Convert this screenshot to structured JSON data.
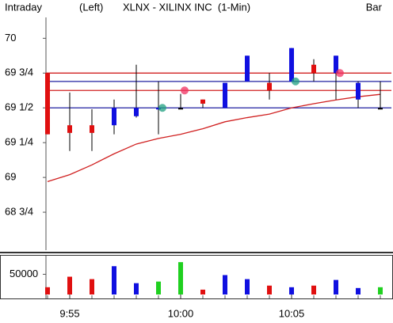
{
  "chart_data": [
    {
      "type": "candlestick",
      "header_left": "Intraday",
      "axis_side": "(Left)",
      "title": "XLNX - XILINX INC  (1-Min)",
      "chart_style": "Bar",
      "categories": [
        null,
        "9:55",
        null,
        null,
        null,
        null,
        "10:00",
        null,
        null,
        null,
        null,
        "10:05",
        null,
        null,
        null,
        null
      ],
      "open": [
        69.75,
        69.375,
        69.375,
        69.375,
        69.44,
        69.49,
        69.5,
        69.56,
        69.5,
        69.69,
        69.68,
        69.69,
        69.81,
        69.75,
        69.56,
        69.5
      ],
      "high": [
        69.75,
        69.61,
        69.49,
        69.56,
        69.81,
        69.69,
        69.6,
        69.56,
        69.68,
        69.875,
        69.75,
        69.93,
        69.85,
        69.875,
        69.69,
        69.69
      ],
      "low": [
        69.31,
        69.19,
        69.19,
        69.31,
        69.43,
        69.31,
        69.5,
        69.5,
        69.5,
        69.69,
        69.56,
        69.69,
        69.69,
        69.56,
        69.5,
        69.5
      ],
      "close": [
        69.31,
        69.32,
        69.32,
        69.5,
        69.5,
        69.5,
        69.5,
        69.53,
        69.68,
        69.875,
        69.625,
        69.93,
        69.75,
        69.875,
        69.68,
        69.5
      ],
      "up_color": "#1010e0",
      "down_color": "#e01010",
      "flat_color": "#000000",
      "moving_average": {
        "color": "#d02020",
        "values": [
          68.97,
          69.02,
          69.09,
          69.17,
          69.24,
          69.28,
          69.31,
          69.35,
          69.4,
          69.43,
          69.455,
          69.5,
          69.53,
          69.557,
          69.58,
          69.597
        ]
      },
      "hlines": [
        {
          "value": 69.75,
          "color": "#d02020"
        },
        {
          "value": 69.69,
          "color": "#2020a0"
        },
        {
          "value": 69.625,
          "color": "#d02020"
        },
        {
          "value": 69.5,
          "color": "#2020a0"
        }
      ],
      "signals": [
        {
          "index": 5,
          "value": 69.5,
          "color": "#20a080"
        },
        {
          "index": 6,
          "value": 69.625,
          "color": "#f03060"
        },
        {
          "index": 11,
          "value": 69.69,
          "color": "#20a080"
        },
        {
          "index": 13,
          "value": 69.75,
          "color": "#f03060"
        }
      ],
      "ylim": [
        68.5,
        70.15
      ],
      "yticks": [
        70,
        {
          "value": 69.75,
          "label": "69 3/4"
        },
        {
          "value": 69.5,
          "label": "69 1/2"
        },
        {
          "value": 69.25,
          "label": "69 1/4"
        },
        69,
        {
          "value": 68.75,
          "label": "68 3/4"
        }
      ]
    },
    {
      "type": "bar",
      "values": [
        18000,
        44000,
        38000,
        70000,
        28000,
        32000,
        80000,
        12000,
        48000,
        38000,
        22000,
        18000,
        22000,
        36000,
        16000,
        18000
      ],
      "colors": [
        "#e01010",
        "#e01010",
        "#e01010",
        "#1010e0",
        "#1010e0",
        "#20d020",
        "#20d020",
        "#e01010",
        "#1010e0",
        "#1010e0",
        "#e01010",
        "#1010e0",
        "#e01010",
        "#1010e0",
        "#1010e0",
        "#20d020"
      ],
      "ylim": [
        0,
        92000
      ],
      "yticks": [
        50000
      ]
    }
  ]
}
